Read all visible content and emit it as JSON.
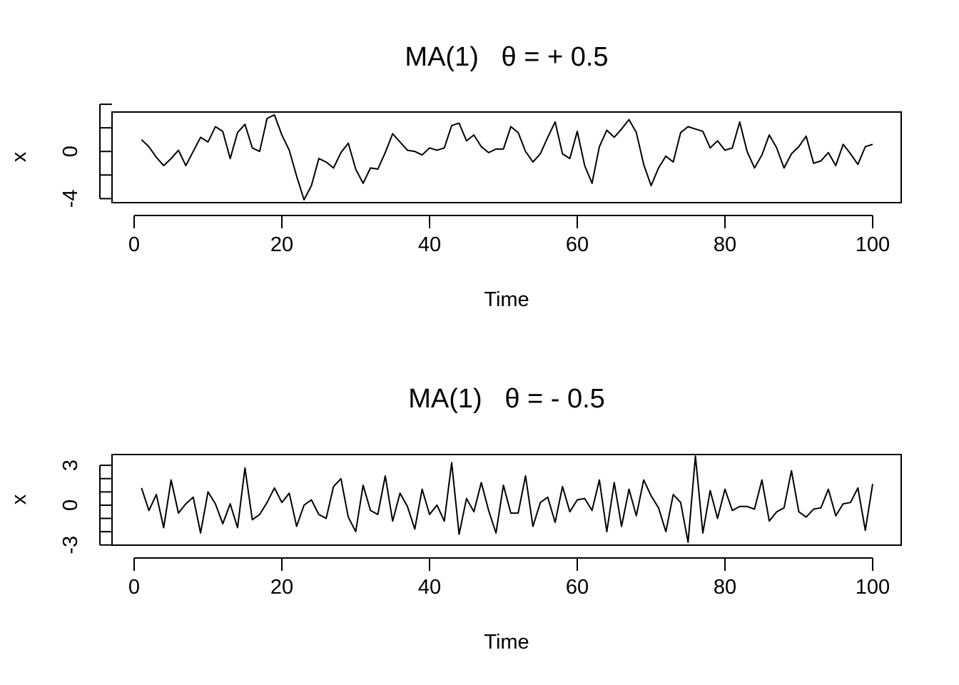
{
  "chart_data": [
    {
      "type": "line",
      "title": "MA(1)   θ = + 0.5",
      "xlabel": "Time",
      "ylabel": "x",
      "xlim": [
        1,
        100
      ],
      "ylim": [
        -4.1,
        3.1
      ],
      "xticks": [
        "0",
        "20",
        "40",
        "60",
        "80",
        "100"
      ],
      "xtick_values": [
        0,
        20,
        40,
        60,
        80,
        100
      ],
      "yticks": [
        "-4",
        "",
        "0",
        "",
        ""
      ],
      "ytick_values": [
        -4,
        -2,
        0,
        2,
        4
      ],
      "grid": false,
      "series": [
        {
          "x": [
            1,
            2,
            3,
            4,
            5,
            6,
            7,
            8,
            9,
            10,
            11,
            12,
            13,
            14,
            15,
            16,
            17,
            18,
            19,
            20,
            21,
            22,
            23,
            24,
            25,
            26,
            27,
            28,
            29,
            30,
            31,
            32,
            33,
            34,
            35,
            36,
            37,
            38,
            39,
            40,
            41,
            42,
            43,
            44,
            45,
            46,
            47,
            48,
            49,
            50,
            51,
            52,
            53,
            54,
            55,
            56,
            57,
            58,
            59,
            60,
            61,
            62,
            63,
            64,
            65,
            66,
            67,
            68,
            69,
            70,
            71,
            72,
            73,
            74,
            75,
            76,
            77,
            78,
            79,
            80,
            81,
            82,
            83,
            84,
            85,
            86,
            87,
            88,
            89,
            90,
            91,
            92,
            93,
            94,
            95,
            96,
            97,
            98,
            99,
            100
          ],
          "values": [
            1.0,
            0.4,
            -0.5,
            -1.2,
            -0.6,
            0.1,
            -1.2,
            0.0,
            1.2,
            0.8,
            2.1,
            1.7,
            -0.6,
            1.6,
            2.3,
            0.3,
            0.0,
            2.8,
            3.1,
            1.4,
            0.1,
            -2.1,
            -4.1,
            -2.9,
            -0.6,
            -0.9,
            -1.4,
            -0.1,
            0.7,
            -1.5,
            -2.7,
            -1.4,
            -1.5,
            -0.1,
            1.5,
            0.8,
            0.1,
            0.0,
            -0.3,
            0.3,
            0.1,
            0.3,
            2.2,
            2.4,
            0.9,
            1.4,
            0.4,
            -0.1,
            0.2,
            0.2,
            2.1,
            1.6,
            0.0,
            -0.9,
            -0.2,
            1.2,
            2.5,
            -0.2,
            -0.6,
            1.7,
            -1.2,
            -2.7,
            0.4,
            1.8,
            1.2,
            1.9,
            2.7,
            1.6,
            -1.1,
            -2.9,
            -1.4,
            -0.4,
            -0.9,
            1.6,
            2.1,
            1.9,
            1.7,
            0.3,
            0.9,
            0.1,
            0.3,
            2.5,
            0.0,
            -1.4,
            -0.3,
            1.4,
            0.3,
            -1.4,
            -0.2,
            0.4,
            1.3,
            -1.0,
            -0.8,
            -0.1,
            -1.2,
            0.6,
            -0.2,
            -1.1,
            0.4,
            0.6
          ]
        }
      ]
    },
    {
      "type": "line",
      "title": "MA(1)   θ = - 0.5",
      "xlabel": "Time",
      "ylabel": "x",
      "xlim": [
        1,
        100
      ],
      "ylim": [
        -2.8,
        3.6
      ],
      "xticks": [
        "0",
        "20",
        "40",
        "60",
        "80",
        "100"
      ],
      "xtick_values": [
        0,
        20,
        40,
        60,
        80,
        100
      ],
      "yticks": [
        "-3",
        "",
        "",
        "0",
        "",
        "",
        "3"
      ],
      "ytick_values": [
        -3,
        -2,
        -1,
        0,
        1,
        2,
        3
      ],
      "grid": false,
      "series": [
        {
          "x": [
            1,
            2,
            3,
            4,
            5,
            6,
            7,
            8,
            9,
            10,
            11,
            12,
            13,
            14,
            15,
            16,
            17,
            18,
            19,
            20,
            21,
            22,
            23,
            24,
            25,
            26,
            27,
            28,
            29,
            30,
            31,
            32,
            33,
            34,
            35,
            36,
            37,
            38,
            39,
            40,
            41,
            42,
            43,
            44,
            45,
            46,
            47,
            48,
            49,
            50,
            51,
            52,
            53,
            54,
            55,
            56,
            57,
            58,
            59,
            60,
            61,
            62,
            63,
            64,
            65,
            66,
            67,
            68,
            69,
            70,
            71,
            72,
            73,
            74,
            75,
            76,
            77,
            78,
            79,
            80,
            81,
            82,
            83,
            84,
            85,
            86,
            87,
            88,
            89,
            90,
            91,
            92,
            93,
            94,
            95,
            96,
            97,
            98,
            99,
            100
          ],
          "values": [
            1.3,
            -0.4,
            0.8,
            -1.7,
            1.9,
            -0.6,
            0.1,
            0.6,
            -2.1,
            1.0,
            0.1,
            -1.4,
            0.1,
            -1.7,
            2.8,
            -1.1,
            -0.7,
            0.2,
            1.3,
            0.2,
            0.9,
            -1.6,
            0.0,
            0.4,
            -0.7,
            -1.0,
            1.4,
            2.0,
            -0.9,
            -2.0,
            1.5,
            -0.4,
            -0.7,
            2.2,
            -1.2,
            0.9,
            -0.1,
            -1.8,
            1.2,
            -0.7,
            0.0,
            -1.2,
            3.2,
            -2.2,
            0.5,
            -0.5,
            1.7,
            -0.4,
            -2.1,
            1.5,
            -0.6,
            -0.6,
            2.2,
            -1.6,
            0.2,
            0.6,
            -1.3,
            1.4,
            -0.5,
            0.4,
            0.5,
            -0.4,
            1.9,
            -2.0,
            1.7,
            -1.6,
            1.2,
            -0.8,
            1.9,
            0.7,
            -0.2,
            -2.0,
            0.8,
            0.2,
            -2.8,
            3.7,
            -2.1,
            1.1,
            -1.0,
            1.2,
            -0.4,
            -0.1,
            -0.1,
            -0.3,
            1.9,
            -1.2,
            -0.5,
            -0.2,
            2.6,
            -0.5,
            -0.9,
            -0.3,
            -0.2,
            1.2,
            -0.8,
            0.1,
            0.2,
            1.3,
            -1.9,
            1.6
          ]
        }
      ]
    }
  ]
}
